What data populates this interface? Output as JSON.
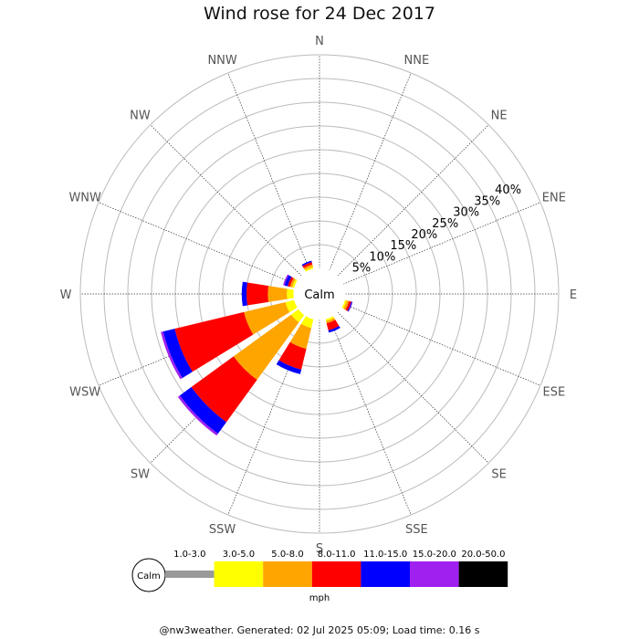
{
  "title": "Wind rose for 24 Dec 2017",
  "footer": "@nw3weather. Generated: 02 Jul 2025 05:09; Load time: 0.16 s",
  "chart_data": {
    "type": "windrose",
    "title": "Wind rose for 24 Dec 2017",
    "calm_label": "Calm",
    "unit": "mph",
    "directions": [
      "N",
      "NNE",
      "NE",
      "ENE",
      "E",
      "ESE",
      "SE",
      "SSE",
      "S",
      "SSW",
      "SW",
      "WSW",
      "W",
      "WNW",
      "NW",
      "NNW"
    ],
    "radial_ticks": [
      5,
      10,
      15,
      20,
      25,
      30,
      35,
      40
    ],
    "radial_tick_labels": [
      "5%",
      "10%",
      "15%",
      "20%",
      "25%",
      "30%",
      "35%",
      "40%"
    ],
    "radial_max": 45,
    "speed_bins": [
      {
        "label": "1.0-3.0",
        "color": "#999999"
      },
      {
        "label": "3.0-5.0",
        "color": "#ffff00"
      },
      {
        "label": "5.0-8.0",
        "color": "#ffa500"
      },
      {
        "label": "8.0-11.0",
        "color": "#ff0000"
      },
      {
        "label": "11.0-15.0",
        "color": "#0000ff"
      },
      {
        "label": "15.0-20.0",
        "color": "#a020f0"
      },
      {
        "label": "20.0-50.0",
        "color": "#000000"
      }
    ],
    "frequencies": {
      "N": [
        0,
        0,
        0,
        0,
        0,
        0,
        0
      ],
      "NNE": [
        0,
        0,
        0,
        0,
        0,
        0,
        0
      ],
      "NE": [
        0,
        0,
        0,
        0,
        0,
        0,
        0
      ],
      "ENE": [
        0,
        0,
        0,
        0,
        0,
        0,
        0
      ],
      "E": [
        0,
        0,
        0,
        0,
        0,
        0,
        0
      ],
      "ESE": [
        0,
        0.5,
        0.5,
        0.5,
        0.2,
        0.1,
        0
      ],
      "SE": [
        0,
        0,
        0,
        0,
        0,
        0,
        0
      ],
      "SSE": [
        0,
        0.5,
        0.5,
        1.5,
        0.5,
        0,
        0
      ],
      "S": [
        0,
        0,
        0,
        0,
        0,
        0,
        0
      ],
      "SSW": [
        0,
        2,
        4.5,
        4.5,
        1,
        0,
        0
      ],
      "SW": [
        0,
        2,
        15,
        11,
        3,
        0.5,
        0
      ],
      "WSW": [
        0,
        2,
        9,
        15,
        2.5,
        0.5,
        0
      ],
      "W": [
        0,
        1.5,
        4,
        4.5,
        1,
        0,
        0
      ],
      "WNW": [
        0,
        0.5,
        0.5,
        0.5,
        0.7,
        0.3,
        0
      ],
      "NW": [
        0,
        0,
        0,
        0,
        0,
        0,
        0
      ],
      "NNW": [
        0,
        0.5,
        0.5,
        0.5,
        0.3,
        0,
        0
      ]
    }
  }
}
